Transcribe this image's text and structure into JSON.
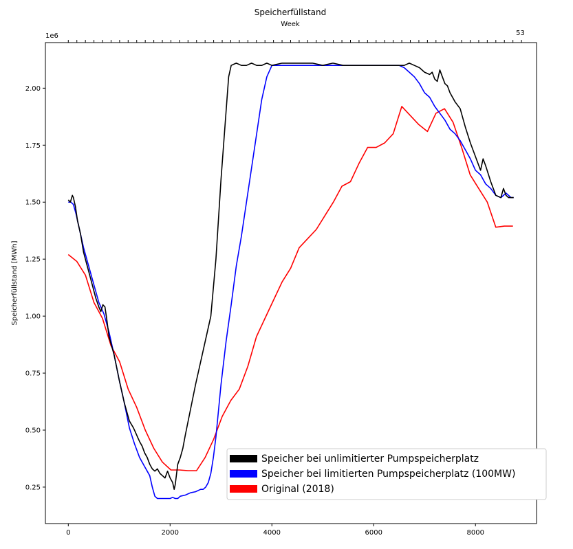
{
  "chart_data": {
    "type": "line",
    "title": "Speicherfüllstand",
    "xlabel": "",
    "ylabel": "Speicherfüllstand [MWh]",
    "y_offset_label": "1e6",
    "secondary_x_label": "Week",
    "secondary_x_last_tick": "53",
    "xlim": [
      -450,
      9200
    ],
    "ylim": [
      90000,
      2200000
    ],
    "x_ticks": [
      0,
      2000,
      4000,
      6000,
      8000
    ],
    "y_ticks": [
      250000,
      500000,
      750000,
      1000000,
      1250000,
      1500000,
      1750000,
      2000000
    ],
    "x_tick_labels": [
      "0",
      "2000",
      "4000",
      "6000",
      "8000"
    ],
    "y_tick_labels": [
      "0.25",
      "0.50",
      "0.75",
      "1.00",
      "1.25",
      "1.50",
      "1.75",
      "2.00"
    ],
    "grid": false,
    "legend_position": "lower-right",
    "series": [
      {
        "name": "Speicher bei unlimitierter Pumpspeicherplatz",
        "color": "#000000",
        "x": [
          0,
          40,
          80,
          100,
          140,
          180,
          240,
          300,
          360,
          420,
          480,
          540,
          600,
          640,
          680,
          720,
          760,
          800,
          900,
          1000,
          1100,
          1200,
          1280,
          1320,
          1360,
          1400,
          1450,
          1500,
          1550,
          1600,
          1650,
          1700,
          1750,
          1800,
          1850,
          1900,
          1950,
          2000,
          2050,
          2080,
          2100,
          2150,
          2200,
          2250,
          2300,
          2400,
          2500,
          2600,
          2700,
          2800,
          2900,
          3000,
          3100,
          3150,
          3200,
          3250,
          3300,
          3400,
          3500,
          3600,
          3700,
          3800,
          3900,
          4000,
          4200,
          4400,
          4600,
          4800,
          5000,
          5200,
          5400,
          5600,
          5800,
          6000,
          6200,
          6400,
          6500,
          6600,
          6700,
          6800,
          6900,
          7000,
          7100,
          7150,
          7200,
          7250,
          7300,
          7350,
          7400,
          7450,
          7500,
          7600,
          7700,
          7800,
          7900,
          8000,
          8100,
          8150,
          8200,
          8300,
          8400,
          8500,
          8550,
          8600,
          8650,
          8700,
          8750
        ],
        "y": [
          1510000,
          1500000,
          1530000,
          1520000,
          1480000,
          1420000,
          1360000,
          1280000,
          1230000,
          1180000,
          1130000,
          1080000,
          1040000,
          1020000,
          1050000,
          1040000,
          980000,
          910000,
          830000,
          720000,
          620000,
          540000,
          510000,
          490000,
          470000,
          450000,
          430000,
          400000,
          380000,
          350000,
          330000,
          320000,
          330000,
          310000,
          300000,
          290000,
          320000,
          290000,
          270000,
          240000,
          260000,
          350000,
          380000,
          420000,
          480000,
          590000,
          700000,
          800000,
          900000,
          1000000,
          1250000,
          1600000,
          1900000,
          2050000,
          2100000,
          2105000,
          2110000,
          2100000,
          2100000,
          2110000,
          2100000,
          2100000,
          2110000,
          2100000,
          2110000,
          2110000,
          2110000,
          2110000,
          2100000,
          2110000,
          2100000,
          2100000,
          2100000,
          2100000,
          2100000,
          2100000,
          2100000,
          2100000,
          2110000,
          2100000,
          2090000,
          2070000,
          2060000,
          2070000,
          2040000,
          2030000,
          2080000,
          2050000,
          2020000,
          2010000,
          1980000,
          1940000,
          1910000,
          1830000,
          1760000,
          1700000,
          1640000,
          1690000,
          1660000,
          1590000,
          1530000,
          1520000,
          1560000,
          1530000,
          1520000,
          1520000,
          1520000
        ]
      },
      {
        "name": "Speicher bei limitierten Pumpspeicherplatz (100MW)",
        "color": "#0000ff",
        "x": [
          0,
          50,
          100,
          150,
          200,
          300,
          400,
          500,
          600,
          700,
          800,
          900,
          1000,
          1100,
          1200,
          1300,
          1400,
          1500,
          1550,
          1600,
          1650,
          1700,
          1750,
          1800,
          1900,
          2000,
          2050,
          2100,
          2150,
          2200,
          2300,
          2400,
          2500,
          2600,
          2650,
          2700,
          2750,
          2800,
          2850,
          2900,
          3000,
          3100,
          3200,
          3300,
          3400,
          3500,
          3600,
          3700,
          3800,
          3900,
          4000,
          4200,
          4400,
          4600,
          4800,
          5000,
          5200,
          5400,
          5600,
          5800,
          6000,
          6200,
          6400,
          6500,
          6600,
          6700,
          6800,
          6900,
          7000,
          7100,
          7200,
          7300,
          7400,
          7500,
          7600,
          7700,
          7800,
          7900,
          8000,
          8100,
          8200,
          8300,
          8400,
          8500,
          8600,
          8700,
          8750
        ],
        "y": [
          1500000,
          1500000,
          1490000,
          1450000,
          1400000,
          1300000,
          1220000,
          1140000,
          1060000,
          1010000,
          930000,
          830000,
          720000,
          620000,
          510000,
          440000,
          380000,
          340000,
          320000,
          300000,
          250000,
          210000,
          200000,
          200000,
          200000,
          200000,
          205000,
          200000,
          200000,
          210000,
          215000,
          225000,
          230000,
          240000,
          240000,
          250000,
          270000,
          310000,
          380000,
          470000,
          700000,
          890000,
          1050000,
          1220000,
          1350000,
          1500000,
          1650000,
          1800000,
          1950000,
          2050000,
          2100000,
          2100000,
          2100000,
          2100000,
          2100000,
          2100000,
          2100000,
          2100000,
          2100000,
          2100000,
          2100000,
          2100000,
          2100000,
          2100000,
          2090000,
          2070000,
          2050000,
          2020000,
          1980000,
          1960000,
          1920000,
          1890000,
          1860000,
          1820000,
          1800000,
          1770000,
          1730000,
          1690000,
          1640000,
          1620000,
          1580000,
          1560000,
          1530000,
          1520000,
          1540000,
          1520000,
          1520000
        ]
      },
      {
        "name": "Original (2018)",
        "color": "#ff0000",
        "x": [
          0,
          168,
          336,
          504,
          672,
          840,
          1008,
          1176,
          1344,
          1512,
          1680,
          1848,
          2016,
          2184,
          2352,
          2520,
          2688,
          2856,
          3024,
          3192,
          3360,
          3528,
          3696,
          3864,
          4032,
          4200,
          4368,
          4536,
          4704,
          4872,
          5040,
          5208,
          5376,
          5544,
          5712,
          5880,
          6048,
          6216,
          6384,
          6552,
          6720,
          6888,
          7056,
          7224,
          7392,
          7560,
          7728,
          7896,
          8064,
          8232,
          8400,
          8568,
          8736
        ],
        "y": [
          1270000,
          1240000,
          1180000,
          1060000,
          990000,
          870000,
          800000,
          680000,
          600000,
          500000,
          420000,
          360000,
          325000,
          325000,
          322000,
          322000,
          380000,
          460000,
          560000,
          630000,
          680000,
          780000,
          910000,
          990000,
          1070000,
          1150000,
          1210000,
          1300000,
          1340000,
          1380000,
          1440000,
          1500000,
          1570000,
          1590000,
          1670000,
          1740000,
          1740000,
          1760000,
          1800000,
          1920000,
          1880000,
          1840000,
          1810000,
          1890000,
          1910000,
          1850000,
          1740000,
          1620000,
          1560000,
          1500000,
          1390000,
          1395000,
          1395000
        ]
      }
    ]
  }
}
